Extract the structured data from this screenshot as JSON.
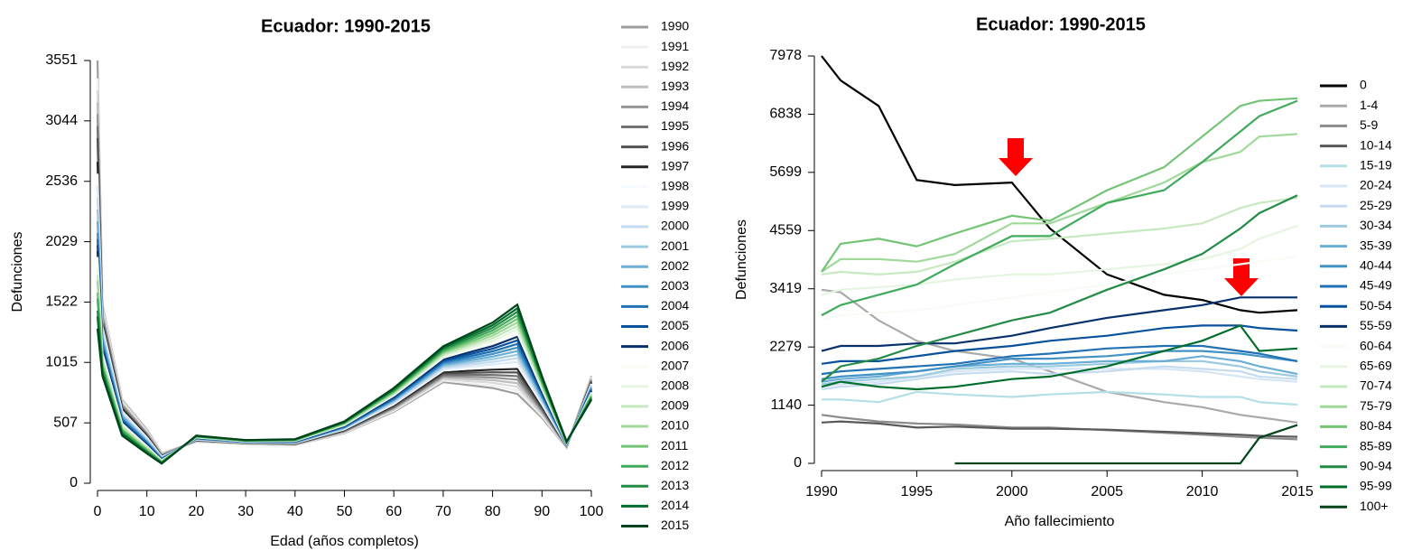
{
  "chart_data": [
    {
      "type": "line",
      "title": "Ecuador: 1990-2015",
      "x_label": "Edad (años completos)",
      "y_label": "Defunciones",
      "x": [
        0,
        1,
        5,
        10,
        13,
        20,
        30,
        40,
        50,
        60,
        70,
        80,
        85,
        90,
        95,
        100
      ],
      "xlim": [
        0,
        100
      ],
      "ylim": [
        0,
        3551
      ],
      "xticks": [
        0,
        10,
        20,
        30,
        40,
        50,
        60,
        70,
        80,
        90,
        100
      ],
      "yticks": [
        0,
        507,
        1015,
        1522,
        2029,
        2536,
        3044,
        3551
      ],
      "series": [
        {
          "name": "1990",
          "color": "#9e9e9e",
          "values": [
            3551,
            1500,
            700,
            450,
            250,
            350,
            330,
            320,
            420,
            600,
            850,
            800,
            750,
            550,
            300,
            900
          ]
        },
        {
          "name": "1991",
          "color": "#f0f0f0",
          "values": [
            3400,
            1480,
            690,
            440,
            245,
            352,
            331,
            322,
            424,
            608,
            862,
            822,
            780,
            564,
            302,
            892
          ]
        },
        {
          "name": "1992",
          "color": "#d9d9d9",
          "values": [
            3300,
            1455,
            675,
            432,
            242,
            354,
            332,
            324,
            428,
            616,
            874,
            844,
            810,
            578,
            304,
            884
          ]
        },
        {
          "name": "1993",
          "color": "#bdbdbd",
          "values": [
            3200,
            1430,
            665,
            424,
            238,
            356,
            334,
            326,
            432,
            624,
            886,
            866,
            840,
            592,
            306,
            876
          ]
        },
        {
          "name": "1994",
          "color": "#969696",
          "values": [
            3100,
            1405,
            655,
            416,
            235,
            358,
            335,
            328,
            436,
            632,
            898,
            888,
            870,
            606,
            308,
            868
          ]
        },
        {
          "name": "1995",
          "color": "#737373",
          "values": [
            3000,
            1380,
            640,
            408,
            232,
            360,
            336,
            330,
            440,
            640,
            910,
            910,
            900,
            620,
            310,
            860
          ]
        },
        {
          "name": "1996",
          "color": "#525252",
          "values": [
            2900,
            1355,
            630,
            400,
            228,
            362,
            338,
            332,
            444,
            648,
            922,
            932,
            930,
            634,
            312,
            852
          ]
        },
        {
          "name": "1997",
          "color": "#252525",
          "values": [
            2700,
            1330,
            620,
            392,
            225,
            364,
            339,
            334,
            448,
            656,
            934,
            954,
            960,
            648,
            314,
            844
          ]
        },
        {
          "name": "1998",
          "color": "#f7fbff",
          "values": [
            2600,
            1310,
            605,
            384,
            222,
            366,
            340,
            336,
            452,
            664,
            946,
            976,
            990,
            662,
            316,
            836
          ]
        },
        {
          "name": "1999",
          "color": "#deebf7",
          "values": [
            2500,
            1285,
            595,
            376,
            218,
            368,
            342,
            338,
            456,
            672,
            958,
            998,
            1020,
            676,
            318,
            828
          ]
        },
        {
          "name": "2000",
          "color": "#c6dbef",
          "values": [
            2400,
            1260,
            580,
            368,
            215,
            370,
            343,
            340,
            460,
            680,
            970,
            1020,
            1050,
            690,
            320,
            820
          ]
        },
        {
          "name": "2001",
          "color": "#9ecae1",
          "values": [
            2300,
            1235,
            570,
            360,
            212,
            372,
            344,
            342,
            464,
            688,
            982,
            1042,
            1080,
            704,
            322,
            812
          ]
        },
        {
          "name": "2002",
          "color": "#6baed6",
          "values": [
            2200,
            1210,
            560,
            352,
            208,
            374,
            346,
            344,
            468,
            696,
            994,
            1064,
            1110,
            718,
            324,
            804
          ]
        },
        {
          "name": "2003",
          "color": "#4292c6",
          "values": [
            2100,
            1185,
            545,
            344,
            205,
            376,
            347,
            346,
            472,
            704,
            1006,
            1086,
            1140,
            732,
            326,
            796
          ]
        },
        {
          "name": "2004",
          "color": "#2171b5",
          "values": [
            2050,
            1160,
            535,
            336,
            202,
            378,
            348,
            348,
            476,
            712,
            1018,
            1108,
            1170,
            746,
            328,
            788
          ]
        },
        {
          "name": "2005",
          "color": "#08519c",
          "values": [
            2000,
            1140,
            520,
            328,
            198,
            380,
            350,
            350,
            480,
            720,
            1030,
            1130,
            1200,
            760,
            330,
            780
          ]
        },
        {
          "name": "2006",
          "color": "#08306b",
          "values": [
            1950,
            1115,
            510,
            320,
            195,
            382,
            351,
            352,
            484,
            728,
            1042,
            1152,
            1230,
            774,
            332,
            772
          ]
        },
        {
          "name": "2007",
          "color": "#f7fcf5",
          "values": [
            1900,
            1090,
            500,
            312,
            192,
            384,
            352,
            354,
            488,
            736,
            1054,
            1174,
            1260,
            788,
            334,
            764
          ]
        },
        {
          "name": "2008",
          "color": "#e5f5e0",
          "values": [
            1800,
            1065,
            485,
            304,
            188,
            386,
            354,
            356,
            492,
            744,
            1066,
            1196,
            1290,
            802,
            336,
            756
          ]
        },
        {
          "name": "2009",
          "color": "#c7e9c0",
          "values": [
            1750,
            1040,
            475,
            296,
            185,
            388,
            355,
            358,
            496,
            752,
            1078,
            1218,
            1320,
            816,
            338,
            748
          ]
        },
        {
          "name": "2010",
          "color": "#a1d99b",
          "values": [
            1700,
            1015,
            460,
            288,
            182,
            390,
            356,
            360,
            500,
            760,
            1090,
            1240,
            1350,
            830,
            340,
            740
          ]
        },
        {
          "name": "2011",
          "color": "#74c476",
          "values": [
            1600,
            990,
            450,
            280,
            178,
            392,
            358,
            362,
            504,
            768,
            1102,
            1262,
            1380,
            844,
            342,
            732
          ]
        },
        {
          "name": "2012",
          "color": "#41ab5d",
          "values": [
            1550,
            970,
            440,
            272,
            175,
            394,
            359,
            364,
            508,
            776,
            1114,
            1284,
            1410,
            858,
            344,
            724
          ]
        },
        {
          "name": "2013",
          "color": "#238b45",
          "values": [
            1450,
            945,
            425,
            264,
            172,
            396,
            360,
            366,
            512,
            784,
            1126,
            1306,
            1440,
            872,
            346,
            716
          ]
        },
        {
          "name": "2014",
          "color": "#006d2c",
          "values": [
            1400,
            920,
            415,
            256,
            168,
            398,
            362,
            368,
            516,
            792,
            1138,
            1328,
            1470,
            886,
            348,
            708
          ]
        },
        {
          "name": "2015",
          "color": "#00441b",
          "values": [
            1300,
            900,
            400,
            250,
            165,
            400,
            363,
            370,
            520,
            800,
            1150,
            1350,
            1500,
            900,
            350,
            700
          ]
        }
      ]
    },
    {
      "type": "line",
      "title": "Ecuador: 1990-2015",
      "x_label": "Año fallecimiento",
      "y_label": "Defunciones",
      "x": [
        1990,
        1991,
        1993,
        1995,
        1997,
        2000,
        2002,
        2005,
        2008,
        2010,
        2012,
        2013,
        2015
      ],
      "xlim": [
        1990,
        2015
      ],
      "ylim": [
        0,
        7978
      ],
      "xticks": [
        1990,
        1995,
        2000,
        2005,
        2010,
        2015
      ],
      "yticks": [
        0,
        1140,
        2279,
        3419,
        4559,
        5699,
        6838,
        7978
      ],
      "series": [
        {
          "name": "0",
          "color": "#000000",
          "values": [
            7978,
            7500,
            7000,
            5550,
            5450,
            5500,
            4600,
            3700,
            3300,
            3200,
            3000,
            2950,
            3000
          ]
        },
        {
          "name": "1-4",
          "color": "#aaaaaa",
          "values": [
            3400,
            3350,
            2800,
            2400,
            2200,
            2050,
            1800,
            1400,
            1200,
            1100,
            950,
            900,
            800
          ]
        },
        {
          "name": "5-9",
          "color": "#8c8c8c",
          "values": [
            950,
            900,
            820,
            780,
            760,
            700,
            700,
            650,
            600,
            560,
            520,
            500,
            470
          ]
        },
        {
          "name": "10-14",
          "color": "#595959",
          "values": [
            800,
            820,
            780,
            700,
            720,
            680,
            680,
            660,
            620,
            590,
            560,
            540,
            520
          ]
        },
        {
          "name": "15-19",
          "color": "#b3e0e6",
          "values": [
            1250,
            1250,
            1200,
            1400,
            1350,
            1300,
            1350,
            1400,
            1350,
            1300,
            1300,
            1200,
            1150
          ]
        },
        {
          "name": "20-24",
          "color": "#d6e6f4",
          "values": [
            1500,
            1550,
            1600,
            1700,
            1800,
            1850,
            1850,
            1850,
            1850,
            1800,
            1700,
            1650,
            1600
          ]
        },
        {
          "name": "25-29",
          "color": "#c6dbef",
          "values": [
            1450,
            1500,
            1550,
            1650,
            1750,
            1800,
            1750,
            1800,
            1900,
            1850,
            1800,
            1700,
            1650
          ]
        },
        {
          "name": "30-34",
          "color": "#9ecae1",
          "values": [
            1550,
            1600,
            1650,
            1700,
            1850,
            1900,
            1900,
            1950,
            2000,
            2000,
            1900,
            1800,
            1700
          ]
        },
        {
          "name": "35-39",
          "color": "#6baed6",
          "values": [
            1600,
            1650,
            1700,
            1800,
            1900,
            1950,
            1950,
            2000,
            2000,
            2100,
            2000,
            1900,
            1750
          ]
        },
        {
          "name": "40-44",
          "color": "#4292c6",
          "values": [
            1650,
            1700,
            1750,
            1800,
            1900,
            2050,
            2050,
            2100,
            2200,
            2200,
            2150,
            2100,
            2000
          ]
        },
        {
          "name": "45-49",
          "color": "#2171b5",
          "values": [
            1750,
            1800,
            1850,
            1900,
            1950,
            2100,
            2150,
            2250,
            2300,
            2300,
            2200,
            2150,
            2000
          ]
        },
        {
          "name": "50-54",
          "color": "#08519c",
          "values": [
            1950,
            2000,
            2000,
            2100,
            2200,
            2300,
            2400,
            2500,
            2650,
            2700,
            2700,
            2650,
            2600
          ]
        },
        {
          "name": "55-59",
          "color": "#08306b",
          "values": [
            2200,
            2300,
            2300,
            2350,
            2350,
            2500,
            2650,
            2850,
            3000,
            3100,
            3250,
            3250,
            3250
          ]
        },
        {
          "name": "60-64",
          "color": "#f7fcf5",
          "values": [
            2800,
            2900,
            2950,
            3000,
            3100,
            3250,
            3350,
            3500,
            3700,
            3800,
            3900,
            3950,
            4050
          ]
        },
        {
          "name": "65-69",
          "color": "#e5f5e0",
          "values": [
            3300,
            3400,
            3450,
            3500,
            3600,
            3700,
            3700,
            3800,
            3900,
            4000,
            4200,
            4400,
            4650
          ]
        },
        {
          "name": "70-74",
          "color": "#c7e9c0",
          "values": [
            3700,
            3750,
            3700,
            3750,
            3950,
            4350,
            4400,
            4500,
            4600,
            4700,
            5000,
            5100,
            5200
          ]
        },
        {
          "name": "75-79",
          "color": "#a1d99b",
          "values": [
            3750,
            4000,
            4000,
            3950,
            4100,
            4700,
            4700,
            5100,
            5500,
            5900,
            6100,
            6400,
            6450
          ]
        },
        {
          "name": "80-84",
          "color": "#74c476",
          "values": [
            3750,
            4300,
            4400,
            4250,
            4500,
            4850,
            4750,
            5350,
            5800,
            6400,
            7000,
            7100,
            7150
          ]
        },
        {
          "name": "85-89",
          "color": "#41ab5d",
          "values": [
            2900,
            3100,
            3300,
            3500,
            3900,
            4450,
            4450,
            5100,
            5350,
            5900,
            6500,
            6800,
            7100
          ]
        },
        {
          "name": "90-94",
          "color": "#238b45",
          "values": [
            1600,
            1900,
            2050,
            2300,
            2500,
            2800,
            2950,
            3400,
            3800,
            4100,
            4600,
            4900,
            5250
          ]
        },
        {
          "name": "95-99",
          "color": "#006d2c",
          "values": [
            1500,
            1600,
            1500,
            1450,
            1500,
            1650,
            1700,
            1900,
            2200,
            2400,
            2700,
            2200,
            2250
          ]
        },
        {
          "name": "100+",
          "color": "#00441b",
          "values": [
            null,
            null,
            null,
            null,
            0,
            0,
            0,
            0,
            0,
            0,
            0,
            500,
            750
          ]
        }
      ]
    }
  ]
}
